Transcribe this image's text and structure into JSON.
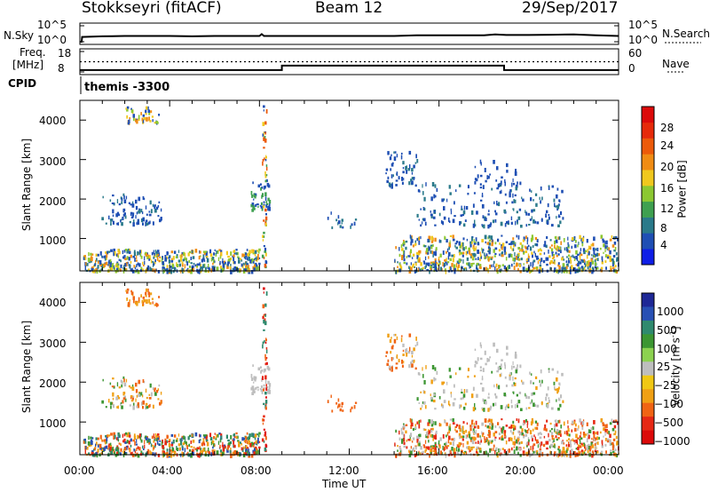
{
  "header": {
    "station": "Stokkseyri (fitACF)",
    "beam": "Beam 12",
    "date": "29/Sep/2017"
  },
  "nsky_panel": {
    "left_label": "N.Sky",
    "left_ticks": [
      "10^5",
      "10^0"
    ],
    "right_ticks": [
      "10^5",
      "10^0"
    ],
    "right_label": "N.Search",
    "series_nsky": {
      "x_hours": [
        0,
        0.08,
        0.1,
        1,
        2,
        3,
        4,
        5,
        6,
        7,
        8,
        8.1,
        8.2,
        9,
        10,
        11,
        12,
        13,
        14,
        15,
        16,
        17,
        18,
        18.5,
        19,
        20,
        21,
        22,
        23,
        24
      ],
      "y_log10": [
        0,
        0,
        1.5,
        1.7,
        1.8,
        1.8,
        1.8,
        1.7,
        1.8,
        1.8,
        1.8,
        2.4,
        1.8,
        1.8,
        1.8,
        1.8,
        1.8,
        1.8,
        1.8,
        2.0,
        2.0,
        2.0,
        2.0,
        2.3,
        2.1,
        2.1,
        2.2,
        2.3,
        2.0,
        1.8
      ]
    }
  },
  "freq_panel": {
    "left_label_top": "Freq.",
    "left_label_unit": "[MHz]",
    "left_ticks": [
      "18",
      "8"
    ],
    "right_ticks": [
      "60",
      "0"
    ],
    "right_label": "Nave",
    "cpid_label": "CPID",
    "cpid_text": "themis -3300",
    "nave_steps": {
      "x_hours": [
        0,
        9.0,
        9.0,
        18.9,
        18.9,
        24
      ],
      "y_nave": [
        30,
        30,
        30,
        30,
        30,
        30
      ]
    },
    "freq_steps": {
      "x_hours": [
        0,
        9.0,
        9.0,
        18.9,
        18.9,
        24
      ],
      "y_mhz": [
        8.9,
        8.9,
        11.1,
        11.1,
        8.9,
        8.9
      ]
    }
  },
  "chart_data": [
    {
      "type": "heatmap",
      "quantity": "Power [dB]",
      "ylabel": "Slant Range [km]",
      "y_ticks": [
        1000,
        2000,
        3000,
        4000
      ],
      "ylim": [
        180,
        4500
      ],
      "x_ticks": [
        "00:00",
        "04:00",
        "08:00",
        "12:00",
        "16:00",
        "20:00",
        "00:00"
      ],
      "xlim_hours": [
        0,
        24
      ],
      "colorbar_label": "Power [dB]",
      "colorbar_ticks": [
        "4",
        "8",
        "12",
        "16",
        "20",
        "24",
        "28"
      ],
      "colorbar_colors": [
        "#0f1ee6",
        "#1f4fb4",
        "#2a7a8a",
        "#3fa050",
        "#8cc832",
        "#f0c81e",
        "#f08c14",
        "#ec5a0a",
        "#e62a0a",
        "#dc0a0a"
      ],
      "clusters": [
        {
          "t0": 0.1,
          "t1": 8.0,
          "r0": 200,
          "r1": 750,
          "n": 520,
          "values": [
            4,
            6,
            8,
            14,
            18,
            22
          ]
        },
        {
          "t0": 2.0,
          "t1": 3.5,
          "r0": 3950,
          "r1": 4350,
          "n": 45,
          "values": [
            6,
            14,
            18,
            22
          ]
        },
        {
          "t0": 0.9,
          "t1": 3.6,
          "r0": 1400,
          "r1": 2150,
          "n": 95,
          "values": [
            4,
            6,
            8
          ]
        },
        {
          "t0": 7.6,
          "t1": 8.5,
          "r0": 1750,
          "r1": 2450,
          "n": 45,
          "values": [
            4,
            6,
            10
          ]
        },
        {
          "t0": 8.1,
          "t1": 8.3,
          "r0": 300,
          "r1": 4400,
          "n": 55,
          "values": [
            4,
            10,
            16,
            24
          ]
        },
        {
          "t0": 13.6,
          "t1": 15.0,
          "r0": 2350,
          "r1": 3250,
          "n": 55,
          "values": [
            4,
            6,
            8
          ]
        },
        {
          "t0": 14.0,
          "t1": 24.0,
          "r0": 200,
          "r1": 1100,
          "n": 750,
          "values": [
            4,
            6,
            8,
            14,
            18,
            22
          ]
        },
        {
          "t0": 15.0,
          "t1": 21.5,
          "r0": 1350,
          "r1": 2450,
          "n": 190,
          "values": [
            4,
            6,
            8
          ]
        },
        {
          "t0": 11.0,
          "t1": 12.5,
          "r0": 1300,
          "r1": 1700,
          "n": 15,
          "values": [
            4,
            8
          ]
        },
        {
          "t0": 17.5,
          "t1": 19.5,
          "r0": 2400,
          "r1": 3000,
          "n": 28,
          "values": [
            4,
            6
          ]
        }
      ]
    },
    {
      "type": "heatmap",
      "quantity": "Velocity [m s^-1]",
      "ylabel": "Slant Range [km]",
      "y_ticks": [
        1000,
        2000,
        3000,
        4000
      ],
      "ylim": [
        180,
        4500
      ],
      "x_ticks": [
        "00:00",
        "04:00",
        "08:00",
        "12:00",
        "16:00",
        "20:00",
        "00:00"
      ],
      "xlim_hours": [
        0,
        24
      ],
      "xlabel": "Time UT",
      "colorbar_label": "Velocity",
      "colorbar_unit": "[m s",
      "colorbar_unit_exp": "-1",
      "colorbar_unit_tail": "]",
      "colorbar_ticks": [
        "1000",
        "500",
        "100",
        "25",
        "−25",
        "−100",
        "−500",
        "−1000"
      ],
      "colorbar_colors": [
        "#1e2896",
        "#2850b4",
        "#2f8a6e",
        "#3c9632",
        "#8cd250",
        "#bebebe",
        "#f0c814",
        "#f0a014",
        "#f06414",
        "#e62814",
        "#dc0a0a"
      ],
      "clusters": [
        {
          "t0": 0.1,
          "t1": 8.0,
          "r0": 200,
          "r1": 750,
          "n": 520,
          "values": [
            -400,
            -150,
            -60,
            60,
            150,
            400
          ]
        },
        {
          "t0": 2.0,
          "t1": 3.5,
          "r0": 3950,
          "r1": 4350,
          "n": 45,
          "values": [
            -150,
            -60
          ]
        },
        {
          "t0": 0.9,
          "t1": 3.6,
          "r0": 1400,
          "r1": 2150,
          "n": 95,
          "values": [
            -150,
            -60,
            0,
            60
          ]
        },
        {
          "t0": 7.6,
          "t1": 8.5,
          "r0": 1750,
          "r1": 2450,
          "n": 45,
          "values": [
            0
          ]
        },
        {
          "t0": 8.1,
          "t1": 8.3,
          "r0": 300,
          "r1": 4400,
          "n": 55,
          "values": [
            -800,
            -400,
            -150,
            150
          ]
        },
        {
          "t0": 13.6,
          "t1": 15.0,
          "r0": 2350,
          "r1": 3250,
          "n": 55,
          "values": [
            -150,
            -60,
            0
          ]
        },
        {
          "t0": 14.0,
          "t1": 24.0,
          "r0": 200,
          "r1": 1100,
          "n": 750,
          "values": [
            -400,
            -150,
            -60,
            0,
            60
          ]
        },
        {
          "t0": 15.0,
          "t1": 21.5,
          "r0": 1350,
          "r1": 2450,
          "n": 190,
          "values": [
            0,
            0,
            -60,
            60
          ]
        },
        {
          "t0": 11.0,
          "t1": 12.5,
          "r0": 1300,
          "r1": 1700,
          "n": 15,
          "values": [
            -150
          ]
        },
        {
          "t0": 17.5,
          "t1": 19.5,
          "r0": 2400,
          "r1": 3000,
          "n": 28,
          "values": [
            0
          ]
        }
      ]
    }
  ]
}
